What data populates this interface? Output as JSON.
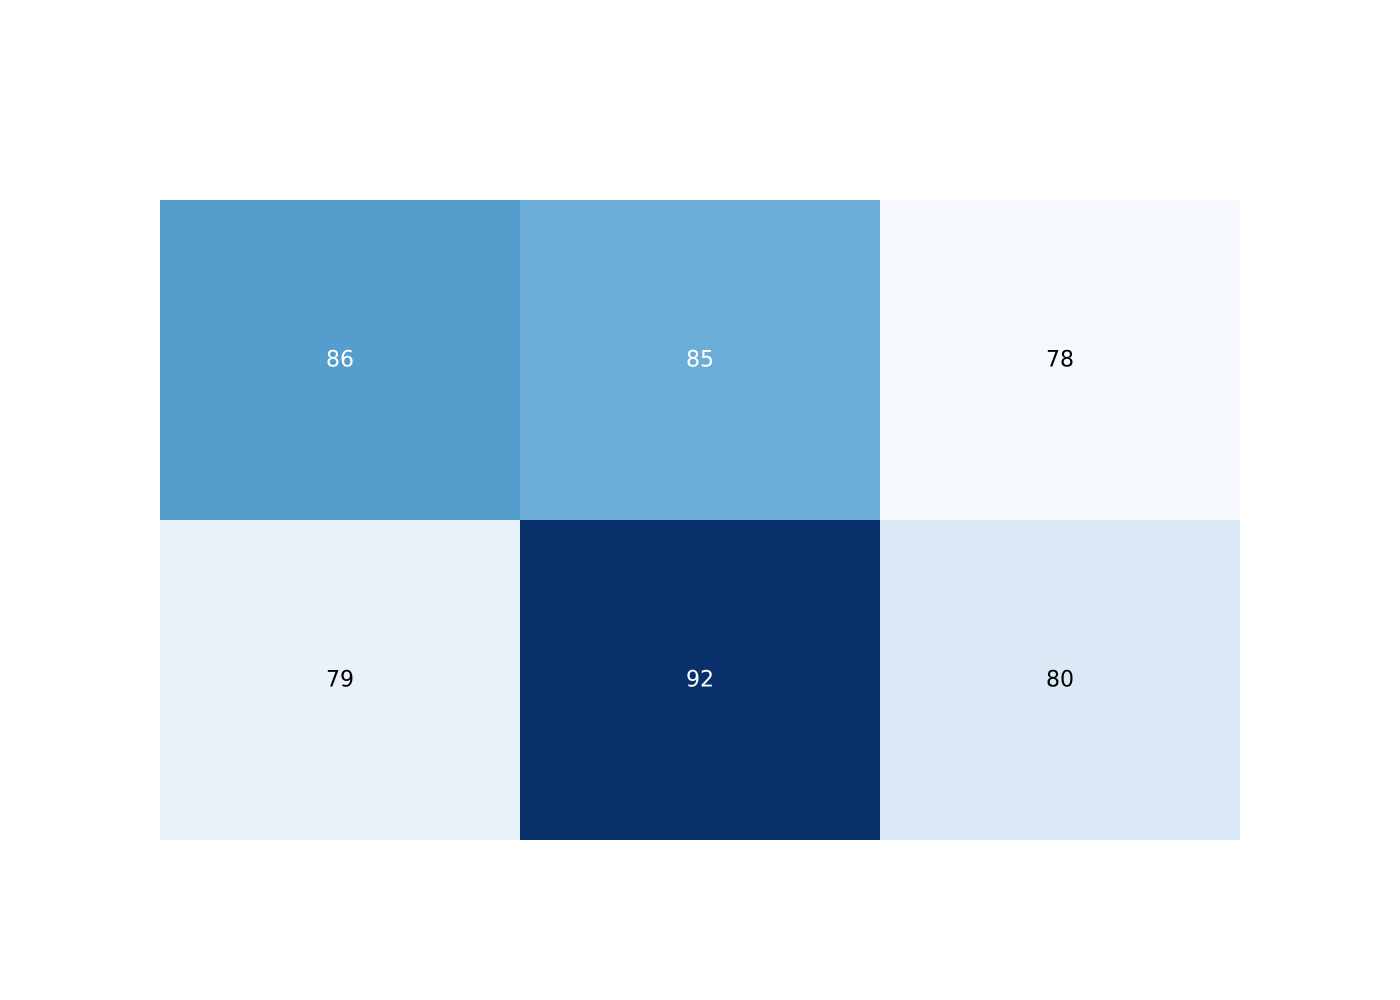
{
  "chart_data": {
    "type": "heatmap",
    "rows": 2,
    "cols": 3,
    "values": [
      [
        86,
        85,
        78
      ],
      [
        79,
        92,
        80
      ]
    ],
    "cell_labels": [
      [
        "86",
        "85",
        "78"
      ],
      [
        "79",
        "92",
        "80"
      ]
    ],
    "colorscale": "Blues",
    "value_range": [
      78,
      92
    ],
    "colors": [
      [
        "#549dcc",
        "#6aadd6",
        "#f6faff"
      ],
      [
        "#e9f1fa",
        "#0a306b",
        "#dbe8f5"
      ]
    ],
    "label_colors": [
      [
        "#ffffff",
        "#ffffff",
        "#000000"
      ],
      [
        "#000000",
        "#ffffff",
        "#000000"
      ]
    ],
    "title": "",
    "xlabel": "",
    "ylabel": "",
    "grid": false,
    "legend": "none"
  }
}
